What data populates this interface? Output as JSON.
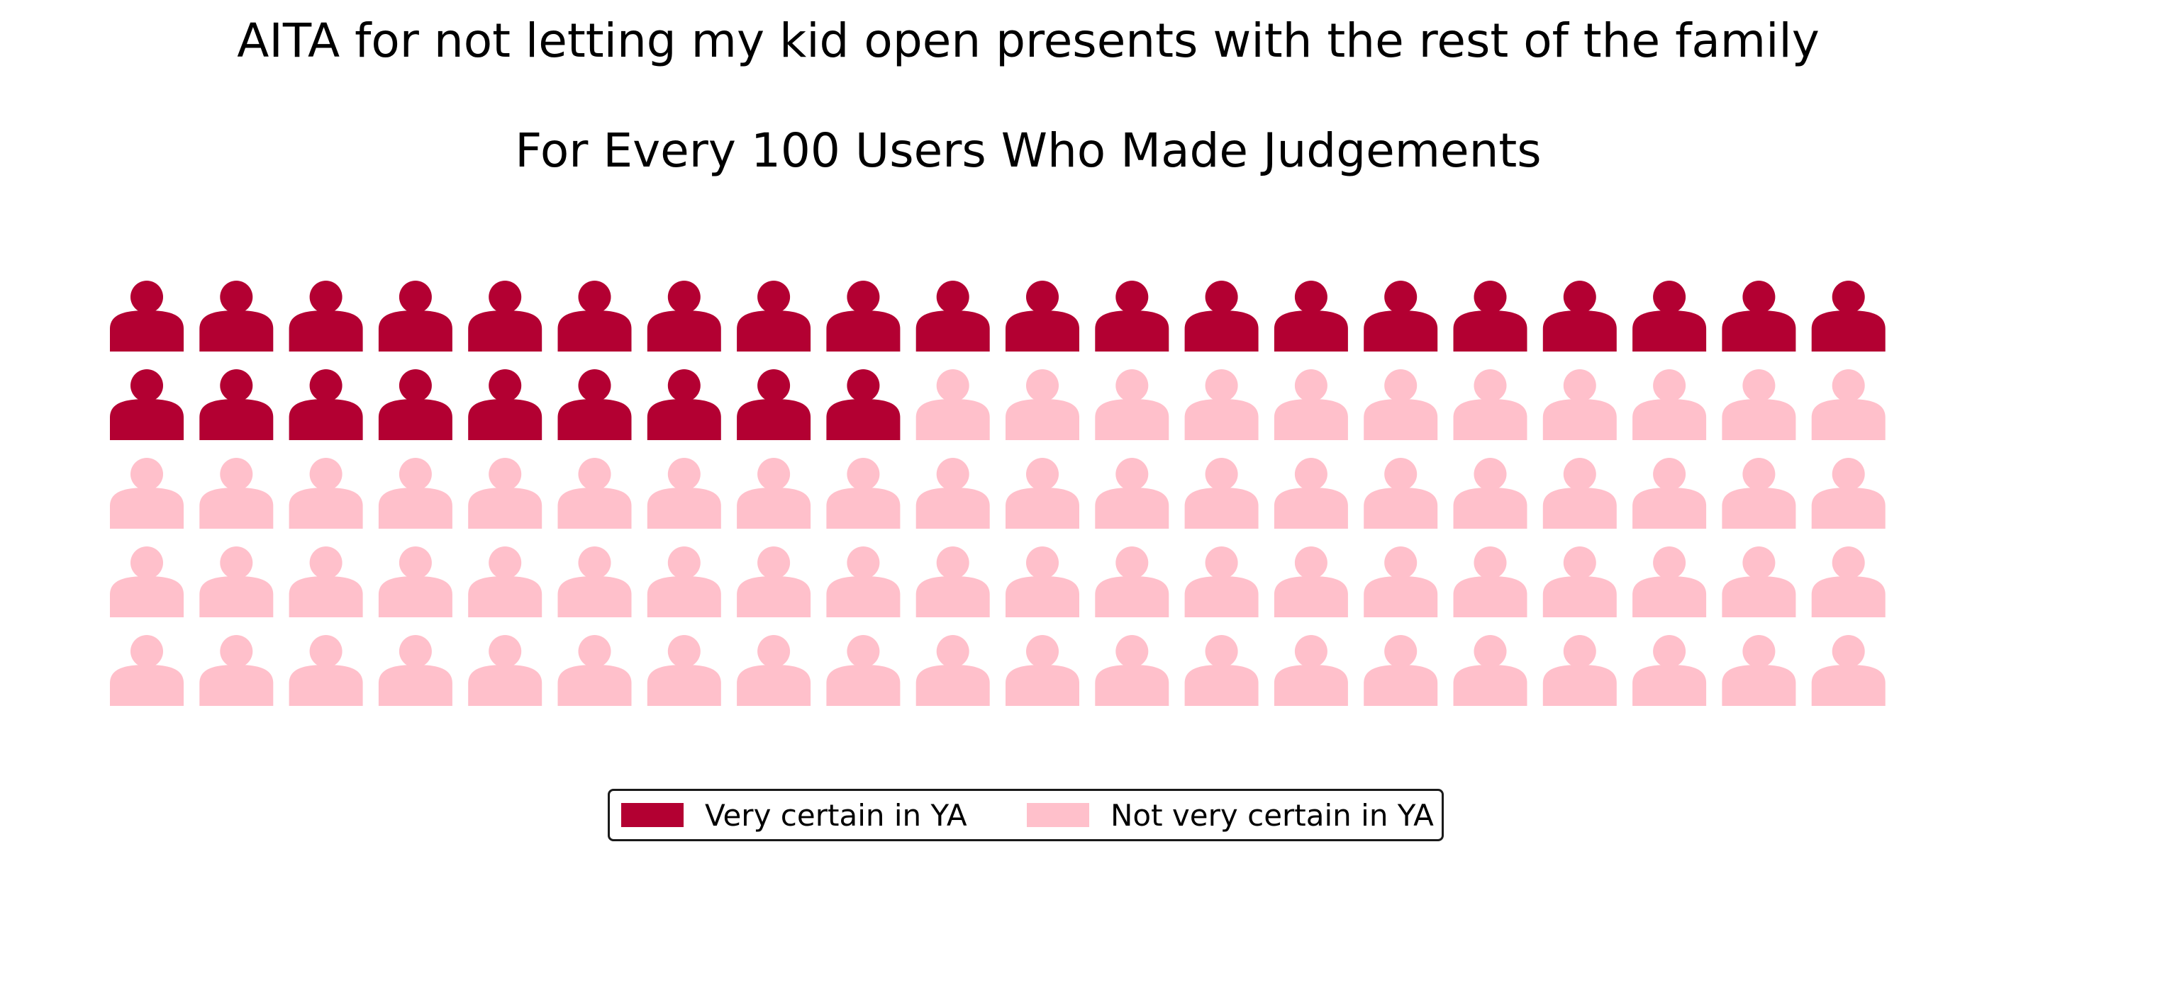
{
  "chart_data": {
    "type": "waffle",
    "title": "AITA for not letting my kid open presents with the rest of the family",
    "subtitle": "For Every 100 Users Who Made Judgements",
    "rows": 5,
    "columns": 20,
    "icon": "person-icon",
    "series": [
      {
        "name": "Very certain in YA",
        "value": 29,
        "color": "#b30032"
      },
      {
        "name": "Not very certain in YA",
        "value": 71,
        "color": "#ffc0cb"
      }
    ],
    "legend_position": "bottom-center"
  }
}
